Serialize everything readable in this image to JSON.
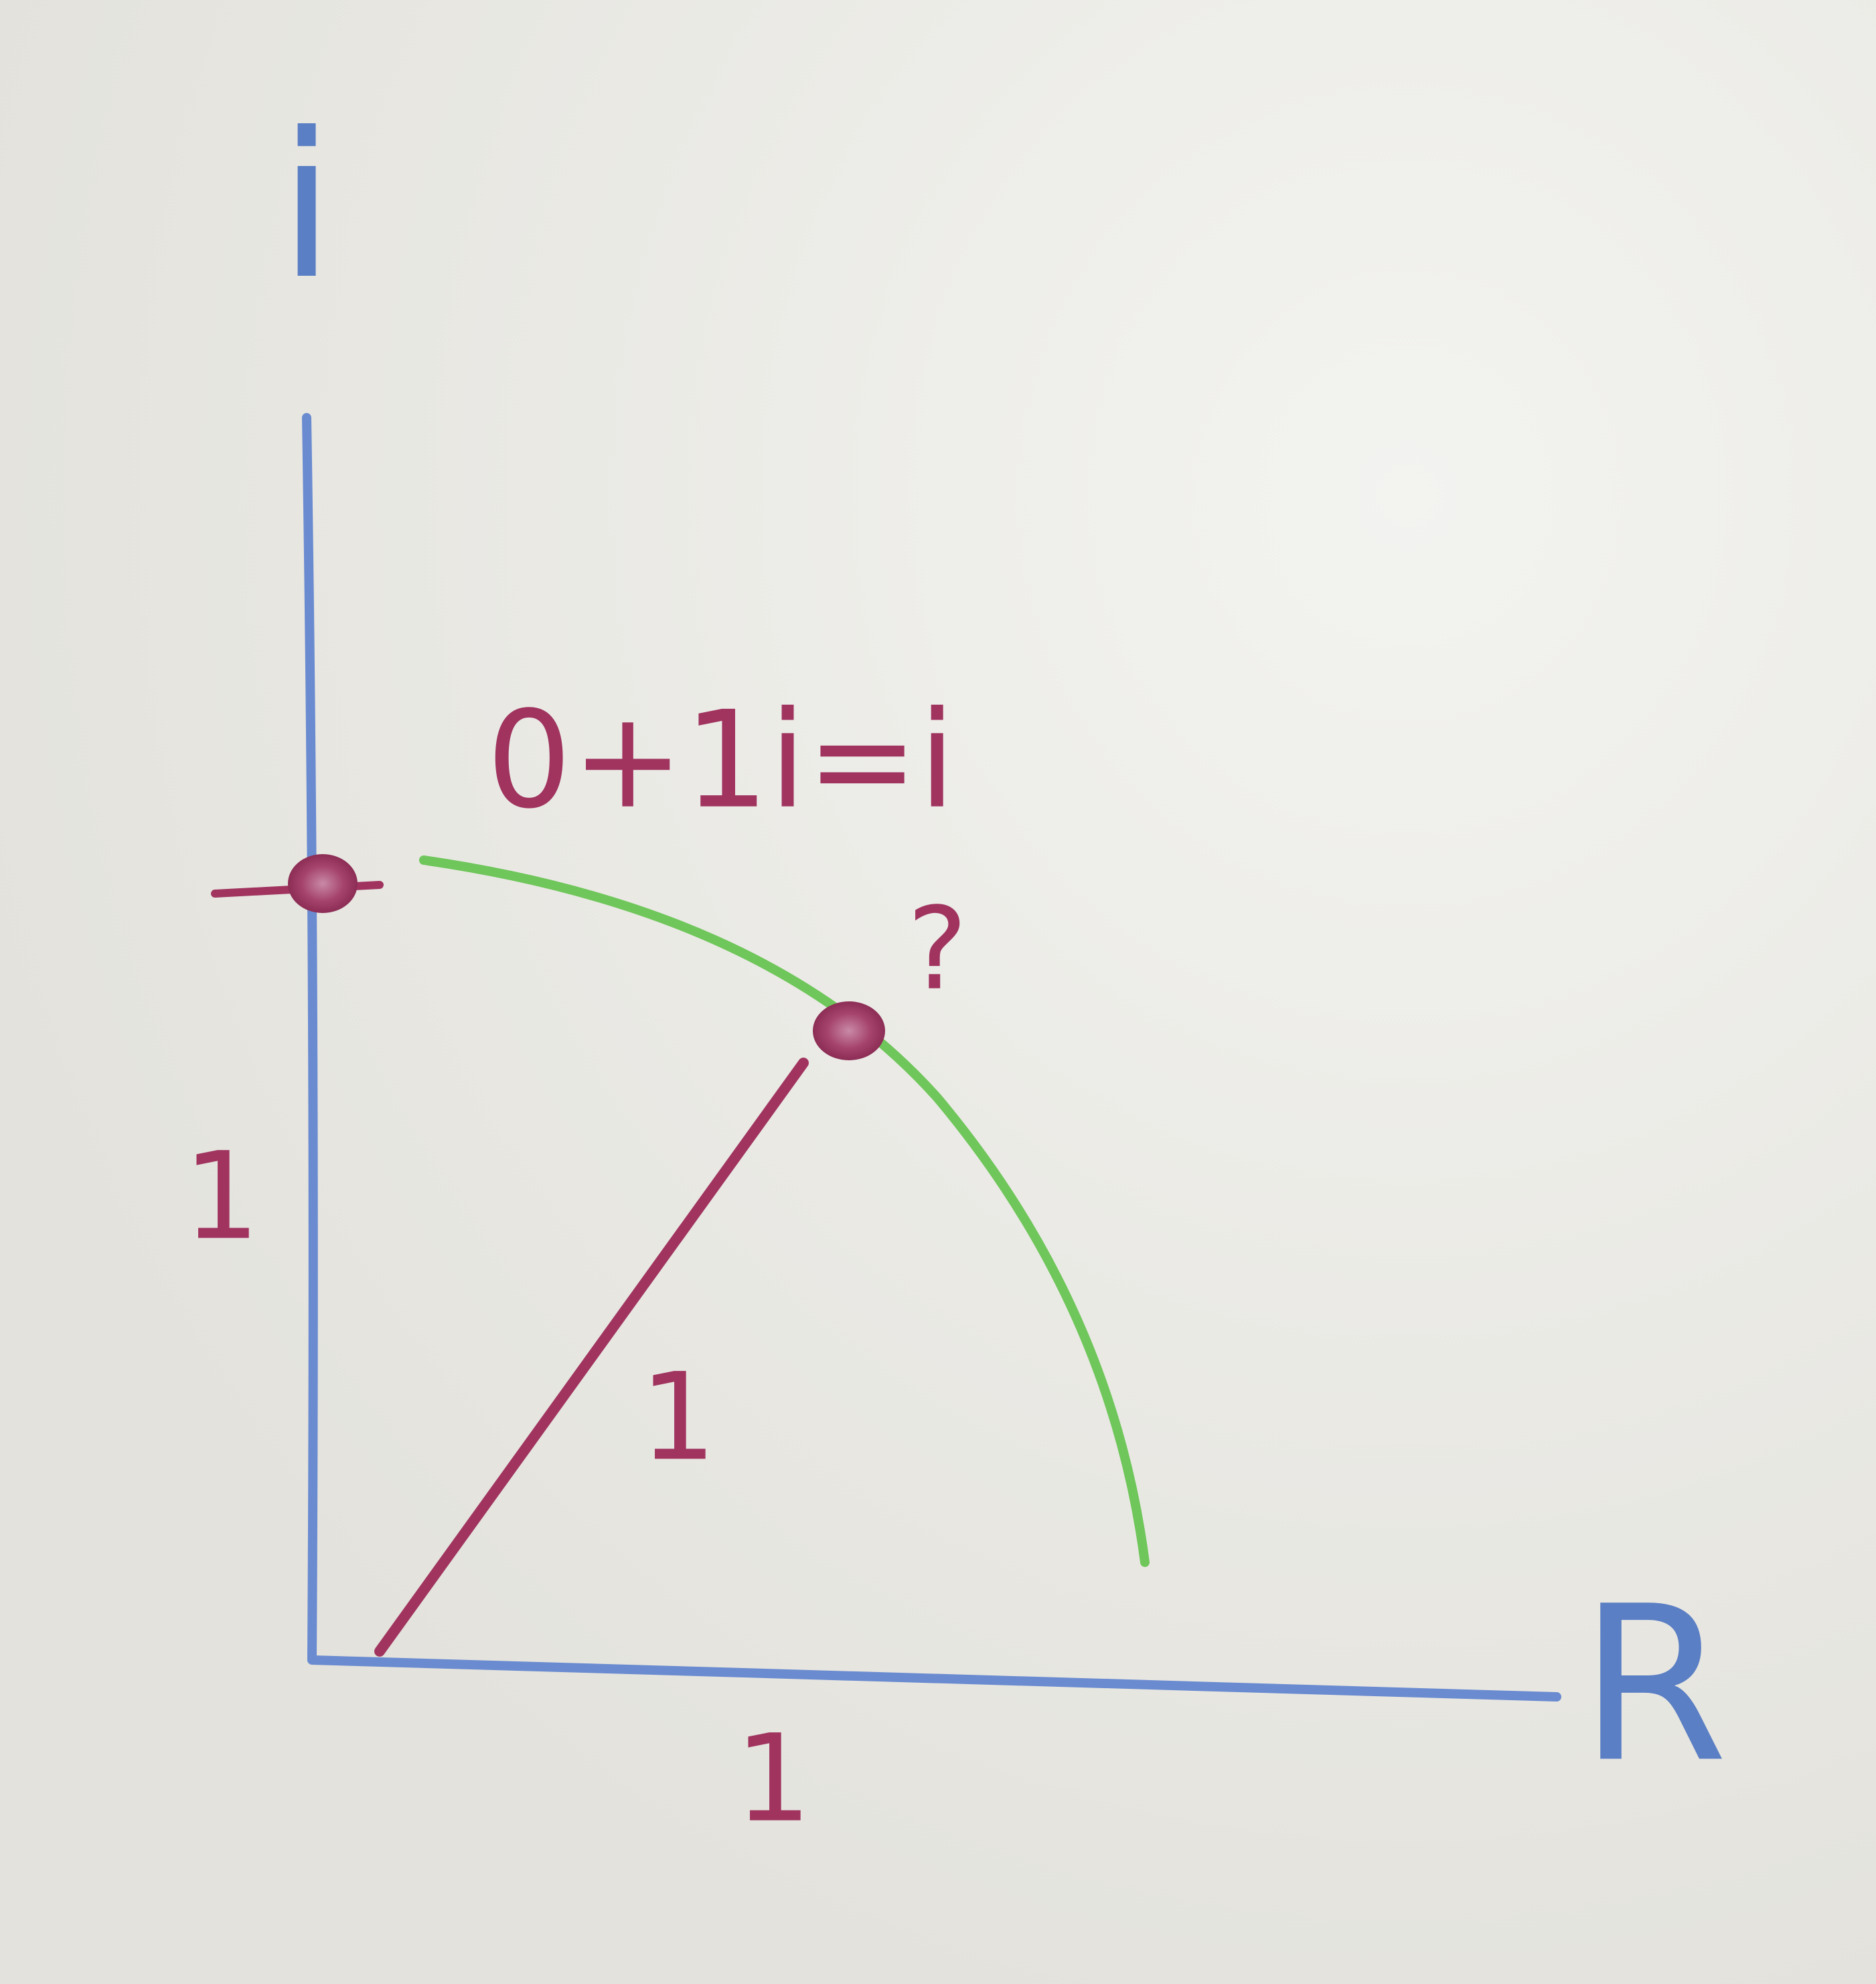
{
  "axes": {
    "y_label": "i",
    "x_label": "R"
  },
  "equation": "0+1i=i",
  "question": "?",
  "unit_labels": [
    "1",
    "1",
    "1"
  ]
}
